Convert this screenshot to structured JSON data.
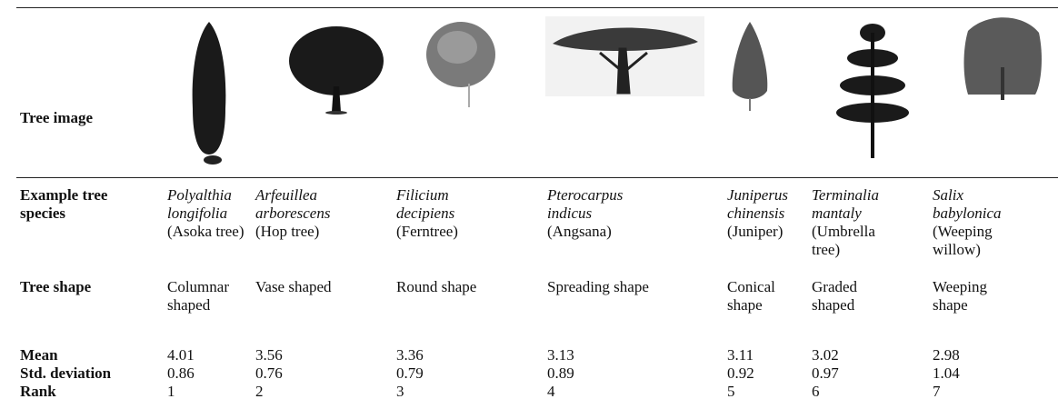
{
  "table": {
    "row_labels": {
      "image": "Tree image",
      "species": "Example tree species",
      "shape": "Tree shape",
      "mean": "Mean",
      "sd": "Std. deviation",
      "rank": "Rank"
    },
    "columns": [
      {
        "scientific": "Polyalthia longifolia",
        "common": "(Asoka tree)",
        "shape": "Columnar shaped",
        "mean": 4.01,
        "sd": 0.86,
        "rank": 1
      },
      {
        "scientific": "Arfeuillea arborescens",
        "common": "(Hop tree)",
        "shape": "Vase shaped",
        "mean": 3.56,
        "sd": 0.76,
        "rank": 2
      },
      {
        "scientific": "Filicium decipiens",
        "common": "(Ferntree)",
        "shape": "Round shape",
        "mean": 3.36,
        "sd": 0.79,
        "rank": 3
      },
      {
        "scientific": "Pterocarpus indicus",
        "common": "(Angsana)",
        "shape": "Spreading shape",
        "mean": 3.13,
        "sd": 0.89,
        "rank": 4
      },
      {
        "scientific": "Juniperus chinensis",
        "common": "(Juniper)",
        "shape": "Conical shape",
        "mean": 3.11,
        "sd": 0.92,
        "rank": 5
      },
      {
        "scientific": "Terminalia mantaly",
        "common": "(Umbrella tree)",
        "shape": "Graded shaped",
        "mean": 3.02,
        "sd": 0.97,
        "rank": 6
      },
      {
        "scientific": "Salix babylonica",
        "common": "(Weeping willow)",
        "shape": "Weeping shape",
        "mean": 2.98,
        "sd": 1.04,
        "rank": 7
      }
    ]
  }
}
